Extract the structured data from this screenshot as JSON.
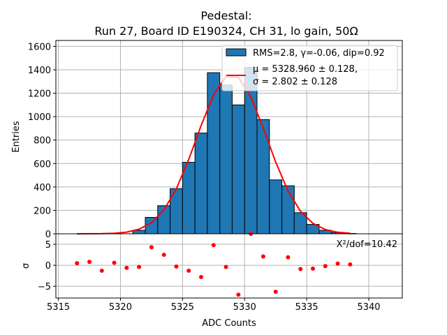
{
  "chart_data": [
    {
      "type": "bar",
      "panel": "histogram",
      "title_line1": "Pedestal:",
      "title_line2": "Run 27, Board ID E190324, CH 31, lo gain, 50Ω",
      "xlabel": "",
      "ylabel": "Entries",
      "xlim": [
        5314.8,
        5342.7
      ],
      "ylim": [
        0,
        1650
      ],
      "grid": true,
      "yticks": [
        0,
        200,
        400,
        600,
        800,
        1000,
        1200,
        1400,
        1600
      ],
      "xticks": [
        5315,
        5320,
        5325,
        5330,
        5335,
        5340
      ],
      "bin_edges": [
        5316,
        5317,
        5318,
        5319,
        5320,
        5321,
        5322,
        5323,
        5324,
        5325,
        5326,
        5327,
        5328,
        5329,
        5330,
        5331,
        5332,
        5333,
        5334,
        5335,
        5336,
        5337,
        5338,
        5339
      ],
      "counts": [
        0,
        0,
        0,
        0,
        0,
        30,
        140,
        240,
        385,
        610,
        860,
        1375,
        1270,
        1100,
        1420,
        975,
        460,
        410,
        180,
        80,
        30,
        10,
        3
      ],
      "bar_color": "#1f77b4",
      "fit": {
        "function": "gaussian",
        "mu": 5328.96,
        "sigma": 2.802,
        "amplitude": 1360,
        "color": "#ff0000",
        "x_range": [
          5316.5,
          5338.5
        ]
      },
      "legend": {
        "placement": "top-right",
        "entries": [
          {
            "label": "RMS=2.8, γ=-0.06, dip=0.92",
            "kind": "patch"
          },
          {
            "label_line1": "μ = 5328.960 ± 0.128,",
            "label_line2": "σ = 2.802 ± 0.128",
            "kind": "line"
          }
        ]
      }
    },
    {
      "type": "scatter",
      "panel": "residuals",
      "xlabel": "ADC Counts",
      "ylabel": "σ",
      "xlim": [
        5314.8,
        5342.7
      ],
      "ylim": [
        -7.8,
        7.5
      ],
      "yticks": [
        -5,
        0,
        5
      ],
      "ytick_labels": [
        "−5",
        "0",
        "5"
      ],
      "xticks": [
        5315,
        5320,
        5325,
        5330,
        5335,
        5340
      ],
      "grid": true,
      "x": [
        5316.5,
        5317.5,
        5318.5,
        5319.5,
        5320.5,
        5321.5,
        5322.5,
        5323.5,
        5324.5,
        5325.5,
        5326.5,
        5327.5,
        5328.5,
        5329.5,
        5330.5,
        5331.5,
        5332.5,
        5333.5,
        5334.5,
        5335.5,
        5336.5,
        5337.5,
        5338.5
      ],
      "y": [
        0.5,
        0.8,
        -1.3,
        0.6,
        -0.6,
        -0.4,
        4.3,
        2.5,
        -0.3,
        -1.3,
        -2.8,
        4.8,
        -0.4,
        -7.0,
        8.0,
        2.1,
        -6.3,
        1.9,
        -0.9,
        -0.8,
        -0.2,
        0.4,
        0.2
      ],
      "point_color": "#ff0000",
      "annotation": "X²/dof=10.42"
    }
  ]
}
